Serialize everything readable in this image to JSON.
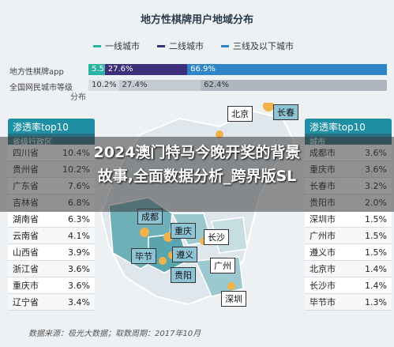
{
  "title": "地方性棋牌用户地域分布",
  "legend": [
    {
      "label": "一线城市",
      "color": "#2bb3a3"
    },
    {
      "label": "二线城市",
      "color": "#3d2f7a"
    },
    {
      "label": "三线及以下城市",
      "color": "#2e86c9"
    }
  ],
  "bars": [
    {
      "label": "地方性棋牌app",
      "values": [
        "5.5%",
        "27.6%",
        "66.9%"
      ]
    },
    {
      "label": "全国网民城市等级",
      "values": [
        "10.2%",
        "27.4%",
        "62.4%"
      ]
    }
  ],
  "sub_unit": "分布",
  "left_panel": {
    "head": "渗透率top10",
    "sub": "省级行政区",
    "rows": [
      {
        "name": "四川省",
        "value": "10.4%"
      },
      {
        "name": "贵州省",
        "value": "10.2%"
      },
      {
        "name": "广东省",
        "value": "7.6%"
      },
      {
        "name": "吉林省",
        "value": "6.8%"
      },
      {
        "name": "湖南省",
        "value": "6.3%"
      },
      {
        "name": "云南省",
        "value": "4.1%"
      },
      {
        "name": "山西省",
        "value": "3.9%"
      },
      {
        "name": "浙江省",
        "value": "3.6%"
      },
      {
        "name": "重庆市",
        "value": "3.6%"
      },
      {
        "name": "辽宁省",
        "value": "3.4%"
      }
    ]
  },
  "right_panel": {
    "head": "渗透率top10",
    "sub": "城市",
    "rows": [
      {
        "name": "成都市",
        "value": "3.6%"
      },
      {
        "name": "重庆市",
        "value": "3.6%"
      },
      {
        "name": "长春市",
        "value": "3.2%"
      },
      {
        "name": "贵阳市",
        "value": "2.0%"
      },
      {
        "name": "深圳市",
        "value": "1.5%"
      },
      {
        "name": "广州市",
        "value": "1.5%"
      },
      {
        "name": "遵义市",
        "value": "1.5%"
      },
      {
        "name": "北京市",
        "value": "1.4%"
      },
      {
        "name": "长沙市",
        "value": "1.4%"
      },
      {
        "name": "毕节市",
        "value": "1.3%"
      }
    ]
  },
  "map_labels": {
    "beijing": "北京",
    "changchun": "长春",
    "chengdu": "成都",
    "chongqing": "重庆",
    "changsha": "长沙",
    "bijie": "毕节",
    "zunyi": "遵义",
    "guangzhou": "广州",
    "guiyang": "贵阳",
    "shenzhen": "深圳"
  },
  "overlay_line1": "2024澳门特马今晚开奖的背景",
  "overlay_line2": "故事,全面数据分析_跨界版SL",
  "footer": "数据来源：极光大数据；取数周期：2017年10月",
  "chart_data": {
    "type": "bar",
    "title": "地方性棋牌用户地域分布",
    "categories": [
      "地方性棋牌app",
      "全国网民城市等级"
    ],
    "series": [
      {
        "name": "一线城市",
        "values": [
          5.5,
          10.2
        ]
      },
      {
        "name": "二线城市",
        "values": [
          27.6,
          27.4
        ]
      },
      {
        "name": "三线及以下城市",
        "values": [
          66.9,
          62.4
        ]
      }
    ]
  }
}
